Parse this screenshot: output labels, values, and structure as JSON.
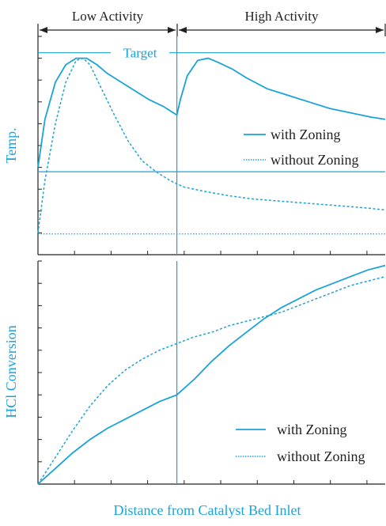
{
  "colors": {
    "accent": "#1aa3d9",
    "ink": "#222222",
    "background": "#ffffff"
  },
  "regions": {
    "low_label": "Low Activity",
    "high_label": "High Activity"
  },
  "xlabel": "Distance from Catalyst Bed Inlet",
  "chart_data": [
    {
      "type": "line",
      "title": "",
      "xlabel": "Distance from Catalyst Bed Inlet",
      "ylabel": "Temp.",
      "xlim": [
        0,
        1
      ],
      "ylim": [
        0,
        1
      ],
      "grid": false,
      "legend_position": "right",
      "annotations": {
        "target_label": "Target",
        "target_value": 0.925,
        "reference_line": 0.38,
        "inlet_line": 0.095,
        "zone_boundary": 0.4
      },
      "series": [
        {
          "name": "with Zoning",
          "style": "solid",
          "x": [
            0,
            0.02,
            0.05,
            0.08,
            0.11,
            0.14,
            0.17,
            0.2,
            0.24,
            0.28,
            0.32,
            0.36,
            0.4,
            0.41,
            0.43,
            0.46,
            0.49,
            0.52,
            0.56,
            0.6,
            0.66,
            0.72,
            0.78,
            0.84,
            0.9,
            0.96,
            1.0
          ],
          "y": [
            0.4,
            0.62,
            0.79,
            0.87,
            0.9,
            0.9,
            0.87,
            0.83,
            0.79,
            0.75,
            0.71,
            0.68,
            0.64,
            0.71,
            0.82,
            0.89,
            0.9,
            0.88,
            0.85,
            0.81,
            0.76,
            0.73,
            0.7,
            0.67,
            0.65,
            0.63,
            0.62
          ]
        },
        {
          "name": "without Zoning",
          "style": "dashed",
          "x": [
            0,
            0.02,
            0.05,
            0.08,
            0.11,
            0.13,
            0.15,
            0.18,
            0.22,
            0.26,
            0.3,
            0.34,
            0.38,
            0.42,
            0.48,
            0.55,
            0.62,
            0.7,
            0.78,
            0.86,
            0.94,
            1.0
          ],
          "y": [
            0.1,
            0.34,
            0.6,
            0.79,
            0.89,
            0.9,
            0.87,
            0.77,
            0.64,
            0.52,
            0.43,
            0.38,
            0.34,
            0.31,
            0.29,
            0.27,
            0.255,
            0.245,
            0.235,
            0.225,
            0.215,
            0.205
          ]
        }
      ]
    },
    {
      "type": "line",
      "title": "",
      "xlabel": "Distance from Catalyst Bed Inlet",
      "ylabel": "HCl Conversion",
      "xlim": [
        0,
        1
      ],
      "ylim": [
        0,
        1
      ],
      "grid": false,
      "legend_position": "bottom-right",
      "annotations": {
        "zone_boundary": 0.4
      },
      "series": [
        {
          "name": "with Zoning",
          "style": "solid",
          "x": [
            0,
            0.05,
            0.1,
            0.15,
            0.2,
            0.25,
            0.3,
            0.35,
            0.4,
            0.45,
            0.5,
            0.55,
            0.6,
            0.65,
            0.7,
            0.75,
            0.8,
            0.85,
            0.9,
            0.95,
            1.0
          ],
          "y": [
            0,
            0.07,
            0.14,
            0.2,
            0.25,
            0.29,
            0.33,
            0.37,
            0.4,
            0.47,
            0.55,
            0.62,
            0.68,
            0.74,
            0.79,
            0.83,
            0.87,
            0.9,
            0.93,
            0.96,
            0.98
          ]
        },
        {
          "name": "without Zoning",
          "style": "dashed",
          "x": [
            0,
            0.05,
            0.1,
            0.15,
            0.2,
            0.25,
            0.3,
            0.35,
            0.4,
            0.45,
            0.5,
            0.55,
            0.6,
            0.65,
            0.7,
            0.75,
            0.8,
            0.85,
            0.9,
            0.95,
            1.0
          ],
          "y": [
            0,
            0.12,
            0.24,
            0.35,
            0.44,
            0.51,
            0.56,
            0.6,
            0.63,
            0.66,
            0.68,
            0.71,
            0.73,
            0.75,
            0.77,
            0.8,
            0.83,
            0.86,
            0.89,
            0.91,
            0.93
          ]
        }
      ]
    }
  ]
}
